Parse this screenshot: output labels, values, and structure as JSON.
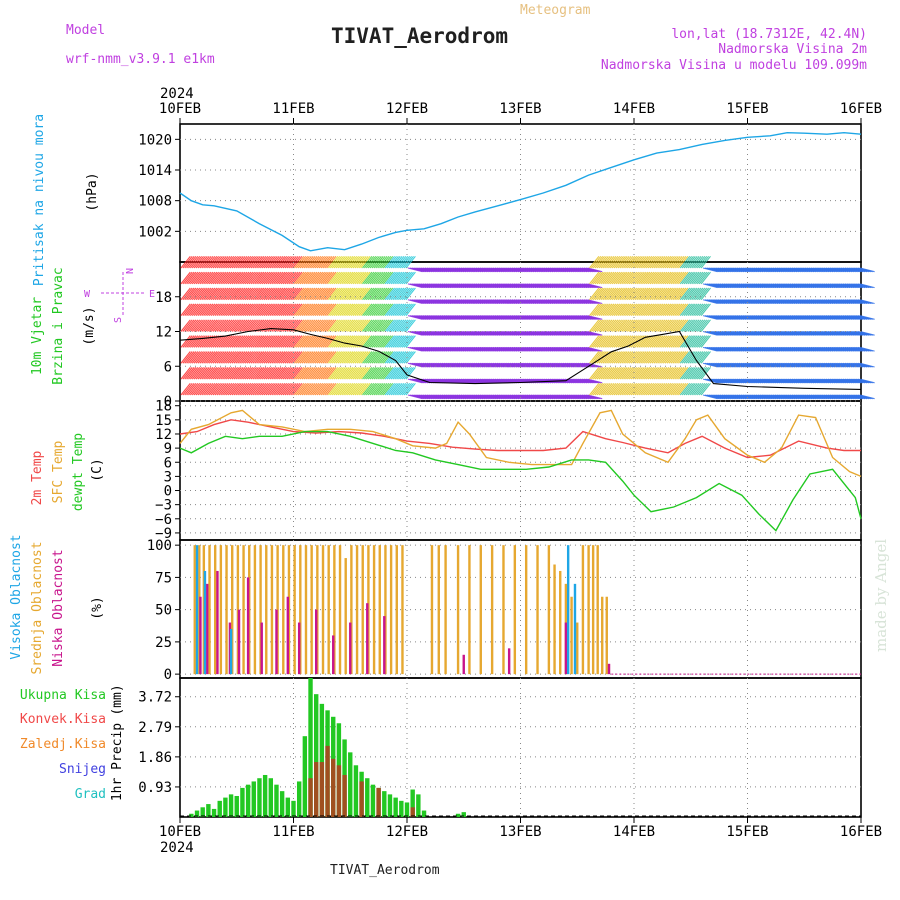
{
  "header": {
    "model_label": "Model",
    "model_name": "wrf-nmm_v3.9.1 e1km",
    "product": "Meteogram",
    "station": "TIVAT_Aerodrom",
    "coords": "lon,lat (18.7312E, 42.4N)",
    "altitude": "Nadmorska Visina 2m",
    "model_altitude": "Nadmorska Visina u modelu 109.099m",
    "year_top": "2024",
    "year_bottom": "2024",
    "footer_station": "TIVAT_Aerodrom",
    "credit": "made by Angel"
  },
  "colors": {
    "pressure": "#1ea6e6",
    "temp2m": "#f04848",
    "sfc": "#e6a830",
    "dewpt": "#22c822",
    "high_cloud": "#1ea6e6",
    "mid_cloud": "#e6a830",
    "low_cloud": "#c8148c",
    "precip_total": "#22c822",
    "precip_conv": "#f04848",
    "precip_grid": "#f08a2a",
    "snow": "#4040e0",
    "graupel": "#20c0c0",
    "wind_axis": "#c040e0"
  },
  "chart_data": [
    {
      "type": "line",
      "panel": "pressure",
      "ylabel_left": "Pritisak na nivou mora",
      "unit": "(hPa)",
      "x_ticks": [
        "10FEB",
        "11FEB",
        "12FEB",
        "13FEB",
        "14FEB",
        "15FEB",
        "16FEB"
      ],
      "xlim_days": [
        0,
        6
      ],
      "ylim": [
        996,
        1023
      ],
      "y_ticks": [
        1002,
        1008,
        1014,
        1020
      ],
      "grid": true,
      "series": [
        {
          "x": [
            0,
            0.1,
            0.2,
            0.3,
            0.5,
            0.7,
            0.9,
            1.05,
            1.15,
            1.3,
            1.45,
            1.6,
            1.75,
            1.9,
            2.0,
            2.15,
            2.3,
            2.45,
            2.6,
            2.8,
            3.0,
            3.2,
            3.4,
            3.6,
            3.8,
            4.0,
            4.2,
            4.4,
            4.6,
            4.8,
            5.0,
            5.2,
            5.35,
            5.5,
            5.7,
            5.85,
            6.0
          ],
          "values": [
            1009.5,
            1008,
            1007.2,
            1007,
            1006,
            1003.5,
            1001.2,
            999,
            998.2,
            998.8,
            998.4,
            999.5,
            1000.8,
            1001.8,
            1002.2,
            1002.5,
            1003.5,
            1004.8,
            1005.8,
            1007,
            1008.2,
            1009.5,
            1011,
            1013,
            1014.5,
            1016,
            1017.3,
            1018,
            1019,
            1019.8,
            1020.4,
            1020.7,
            1021.3,
            1021.2,
            1021.0,
            1021.3,
            1021.0
          ]
        }
      ]
    },
    {
      "type": "barbs",
      "panel": "wind",
      "ylabel_left": [
        "10m Vjetar",
        "Brzina i Pravac"
      ],
      "unit": "(m/s)",
      "compass": {
        "n": "N",
        "e": "E",
        "w": "W",
        "s": "S"
      },
      "ylim": [
        0,
        24
      ],
      "y_ticks": [
        0,
        6,
        12,
        18
      ],
      "speed_series": {
        "x": [
          0,
          0.2,
          0.4,
          0.6,
          0.8,
          1.0,
          1.15,
          1.3,
          1.45,
          1.6,
          1.75,
          1.9,
          2.0,
          2.2,
          2.6,
          3.0,
          3.4,
          3.6,
          3.8,
          3.95,
          4.1,
          4.25,
          4.4,
          4.55,
          4.7,
          5.0,
          5.5,
          6.0
        ],
        "values": [
          10.5,
          10.8,
          11.2,
          12.0,
          12.5,
          12.3,
          11.5,
          10.8,
          10.0,
          9.5,
          8.6,
          7.0,
          4.5,
          3.2,
          3.0,
          3.2,
          3.5,
          6.0,
          8.5,
          9.5,
          11.0,
          11.5,
          12.0,
          7.0,
          3.0,
          2.5,
          2.2,
          2.0
        ]
      },
      "direction_bands": [
        {
          "x_from": 0.0,
          "x_to": 1.0,
          "color": "#ff2a2a"
        },
        {
          "x_from": 1.0,
          "x_to": 1.3,
          "color": "#ff7a1a"
        },
        {
          "x_from": 1.3,
          "x_to": 1.6,
          "color": "#e0d820"
        },
        {
          "x_from": 1.6,
          "x_to": 1.8,
          "color": "#40d040"
        },
        {
          "x_from": 1.8,
          "x_to": 2.0,
          "color": "#20c8d8"
        },
        {
          "x_from": 2.0,
          "x_to": 3.6,
          "color": "#8a30e0"
        },
        {
          "x_from": 3.6,
          "x_to": 4.4,
          "color": "#e6c020"
        },
        {
          "x_from": 4.4,
          "x_to": 4.6,
          "color": "#30c0a0"
        },
        {
          "x_from": 4.6,
          "x_to": 6.0,
          "color": "#3070e8"
        }
      ]
    },
    {
      "type": "line",
      "panel": "temperature",
      "ylabel_left": [
        "2m Temp",
        "SFC Temp",
        "dewpt Temp"
      ],
      "unit": "(C)",
      "ylim": [
        -10.5,
        19
      ],
      "y_ticks": [
        -9,
        -6,
        -3,
        0,
        3,
        6,
        9,
        12,
        15,
        18
      ],
      "series": [
        {
          "name": "2m Temp",
          "x": [
            0,
            0.15,
            0.3,
            0.45,
            0.6,
            0.8,
            1.0,
            1.2,
            1.4,
            1.6,
            1.8,
            2.0,
            2.2,
            2.4,
            2.6,
            2.8,
            3.0,
            3.2,
            3.4,
            3.55,
            3.75,
            3.9,
            4.1,
            4.3,
            4.45,
            4.6,
            4.8,
            5.0,
            5.2,
            5.45,
            5.7,
            5.85,
            6.0
          ],
          "values": [
            12,
            12.5,
            14,
            15,
            14.5,
            13.5,
            12.5,
            12.2,
            12.5,
            12.2,
            11.5,
            10.5,
            10.0,
            9.2,
            8.8,
            8.5,
            8.5,
            8.5,
            9.0,
            12.5,
            11.0,
            10.2,
            9.0,
            8.0,
            10.0,
            11.5,
            9.0,
            7.0,
            7.5,
            10.5,
            9.0,
            8.5,
            8.5
          ]
        },
        {
          "name": "SFC Temp",
          "x": [
            0,
            0.1,
            0.25,
            0.45,
            0.55,
            0.7,
            0.9,
            1.1,
            1.3,
            1.5,
            1.7,
            1.9,
            2.05,
            2.25,
            2.35,
            2.45,
            2.55,
            2.7,
            2.9,
            3.1,
            3.3,
            3.45,
            3.55,
            3.7,
            3.8,
            3.9,
            4.1,
            4.3,
            4.45,
            4.55,
            4.65,
            4.8,
            5.0,
            5.15,
            5.3,
            5.45,
            5.6,
            5.75,
            5.9,
            6.0
          ],
          "values": [
            10,
            13,
            14,
            16.5,
            17,
            14,
            13.5,
            12.5,
            13,
            13,
            12.5,
            11,
            9.5,
            9.0,
            10,
            14.5,
            12,
            7,
            6.0,
            5.5,
            5.5,
            5.5,
            10,
            16.5,
            17,
            12,
            8,
            6.0,
            11,
            15,
            16,
            11,
            7.5,
            6.0,
            9,
            16,
            15.5,
            7,
            4,
            3
          ]
        },
        {
          "name": "dewpt Temp",
          "x": [
            0,
            0.1,
            0.25,
            0.4,
            0.55,
            0.7,
            0.9,
            1.1,
            1.3,
            1.5,
            1.7,
            1.9,
            2.05,
            2.25,
            2.45,
            2.65,
            2.85,
            3.05,
            3.25,
            3.45,
            3.6,
            3.75,
            3.9,
            4.0,
            4.15,
            4.35,
            4.55,
            4.75,
            4.95,
            5.1,
            5.25,
            5.4,
            5.55,
            5.75,
            5.95,
            6.0
          ],
          "values": [
            9,
            8,
            10,
            11.5,
            11,
            11.5,
            11.5,
            12.5,
            12.5,
            11.5,
            10,
            8.5,
            8.0,
            6.5,
            5.5,
            4.5,
            4.5,
            4.5,
            5.0,
            6.5,
            6.5,
            6.0,
            2.0,
            -1,
            -4.5,
            -3.5,
            -1.5,
            1.5,
            -1.0,
            -5,
            -8.5,
            -2,
            3.5,
            4.5,
            -1.5,
            -6
          ]
        }
      ]
    },
    {
      "type": "bar",
      "panel": "clouds",
      "ylabel_left": [
        "Visoka Oblacnost",
        "Srednja Oblacnost",
        "Niska Oblacnost"
      ],
      "unit": "(%)",
      "ylim": [
        0,
        100
      ],
      "y_ticks": [
        0,
        25,
        50,
        75,
        100
      ],
      "series": [
        {
          "name": "Srednja Oblacnost",
          "x": [
            0.13,
            0.17,
            0.21,
            0.26,
            0.31,
            0.36,
            0.41,
            0.46,
            0.51,
            0.56,
            0.61,
            0.66,
            0.71,
            0.76,
            0.81,
            0.86,
            0.91,
            0.96,
            1.01,
            1.06,
            1.11,
            1.16,
            1.21,
            1.26,
            1.31,
            1.36,
            1.41,
            1.46,
            1.51,
            1.56,
            1.61,
            1.66,
            1.71,
            1.76,
            1.81,
            1.86,
            1.91,
            1.96,
            2.22,
            2.28,
            2.34,
            2.45,
            2.55,
            2.65,
            2.75,
            2.85,
            2.95,
            3.05,
            3.15,
            3.25,
            3.3,
            3.35,
            3.4,
            3.45,
            3.5,
            3.55,
            3.6,
            3.64,
            3.68,
            3.72,
            3.76
          ],
          "values": [
            100,
            100,
            100,
            100,
            100,
            100,
            100,
            100,
            100,
            100,
            100,
            100,
            100,
            100,
            100,
            100,
            100,
            100,
            100,
            100,
            100,
            100,
            100,
            100,
            100,
            100,
            100,
            90,
            100,
            100,
            100,
            100,
            100,
            100,
            100,
            100,
            100,
            100,
            100,
            100,
            100,
            100,
            100,
            100,
            100,
            100,
            100,
            100,
            100,
            100,
            85,
            80,
            70,
            60,
            40,
            100,
            100,
            100,
            100,
            60,
            60
          ]
        },
        {
          "name": "Niska Oblacnost",
          "x": [
            0.18,
            0.24,
            0.33,
            0.44,
            0.52,
            0.6,
            0.72,
            0.85,
            0.95,
            1.05,
            1.2,
            1.35,
            1.5,
            1.65,
            1.8,
            2.5,
            2.9,
            3.4,
            3.78
          ],
          "values": [
            60,
            70,
            80,
            40,
            50,
            75,
            40,
            50,
            60,
            40,
            50,
            30,
            40,
            55,
            45,
            15,
            20,
            40,
            8
          ]
        },
        {
          "name": "Visoka Oblacnost",
          "x": [
            0.15,
            0.22,
            0.45,
            3.42,
            3.48
          ],
          "values": [
            100,
            80,
            35,
            100,
            70
          ]
        }
      ]
    },
    {
      "type": "bar",
      "panel": "precipitation",
      "ylabel_left": "1hr Precip",
      "unit": "(mm)",
      "legend_labels": [
        "Ukupna Kisa",
        "Konvek.Kisa",
        "Zaledj.Kisa",
        "Snijeg",
        "Grad"
      ],
      "ylim": [
        0,
        4.3
      ],
      "y_ticks": [
        0.93,
        1.86,
        2.79,
        3.72
      ],
      "series": [
        {
          "name": "Ukupna Kisa",
          "x": [
            0.1,
            0.15,
            0.2,
            0.25,
            0.3,
            0.35,
            0.4,
            0.45,
            0.5,
            0.55,
            0.6,
            0.65,
            0.7,
            0.75,
            0.8,
            0.85,
            0.9,
            0.95,
            1.0,
            1.05,
            1.1,
            1.15,
            1.2,
            1.25,
            1.3,
            1.35,
            1.4,
            1.45,
            1.5,
            1.55,
            1.6,
            1.65,
            1.7,
            1.75,
            1.8,
            1.85,
            1.9,
            1.95,
            2.0,
            2.05,
            2.1,
            2.15,
            2.45,
            2.5
          ],
          "values": [
            0.1,
            0.2,
            0.3,
            0.4,
            0.25,
            0.5,
            0.6,
            0.7,
            0.65,
            0.9,
            1.0,
            1.1,
            1.2,
            1.3,
            1.2,
            1.0,
            0.8,
            0.6,
            0.5,
            1.1,
            2.5,
            4.3,
            3.8,
            3.5,
            3.3,
            3.1,
            2.9,
            2.4,
            2.0,
            1.6,
            1.4,
            1.2,
            1.0,
            0.9,
            0.8,
            0.7,
            0.6,
            0.5,
            0.45,
            0.85,
            0.7,
            0.2,
            0.1,
            0.15
          ]
        },
        {
          "name": "Konvek.Kisa",
          "x": [
            1.15,
            1.2,
            1.25,
            1.3,
            1.35,
            1.4,
            1.45,
            1.6,
            1.75,
            2.05
          ],
          "values": [
            1.2,
            1.7,
            1.7,
            2.2,
            1.8,
            1.6,
            1.3,
            1.1,
            0.9,
            0.3
          ]
        }
      ]
    }
  ]
}
